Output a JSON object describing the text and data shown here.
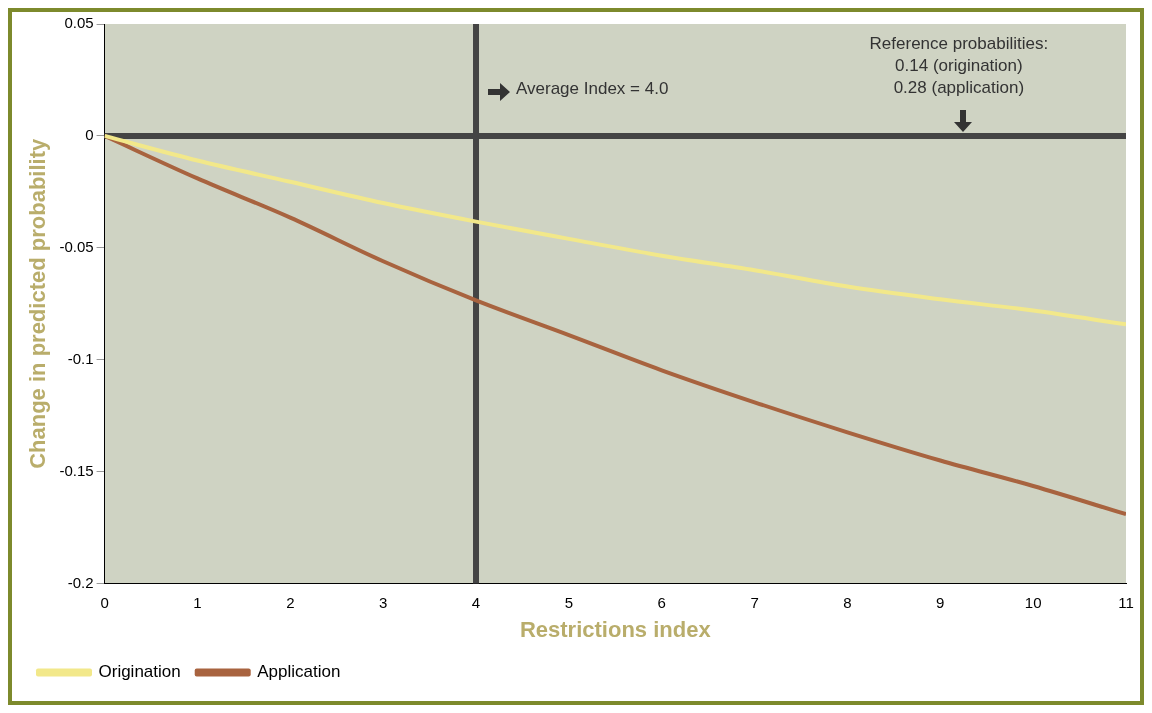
{
  "chart_data": {
    "type": "line",
    "xlabel": "Restrictions index",
    "ylabel": "Change in predicted probability",
    "x": [
      0,
      1,
      2,
      3,
      4,
      5,
      6,
      7,
      8,
      9,
      10,
      11
    ],
    "series": [
      {
        "name": "Origination",
        "color": "#f2e88a",
        "values": [
          0,
          -0.011,
          -0.0205,
          -0.03,
          -0.0383,
          -0.046,
          -0.0535,
          -0.06,
          -0.0673,
          -0.073,
          -0.078,
          -0.0842
        ]
      },
      {
        "name": "Application",
        "color": "#a8633f",
        "values": [
          0,
          -0.019,
          -0.0365,
          -0.056,
          -0.0735,
          -0.089,
          -0.1047,
          -0.119,
          -0.1324,
          -0.145,
          -0.1564,
          -0.169
        ]
      }
    ],
    "xlim": [
      0,
      11
    ],
    "xticks": [
      0,
      1,
      2,
      3,
      4,
      5,
      6,
      7,
      8,
      9,
      10,
      11
    ],
    "ylim": [
      -0.2,
      0.05
    ],
    "yticks": [
      -0.2,
      -0.15,
      -0.1,
      -0.05,
      0,
      0.05
    ],
    "ref_lines": [
      {
        "axis": "x",
        "value": 4,
        "label": "Average Index = 4.0",
        "color": "#444444"
      },
      {
        "axis": "y",
        "value": 0,
        "color": "#444444"
      }
    ],
    "annotations": [
      {
        "text": "Reference probabilities:\n0.14 (origination)\n0.28 (application)",
        "x": 9.2,
        "y": 0
      }
    ],
    "grid": false,
    "legend": "bottom left",
    "marker": "none",
    "line_style": "solid"
  }
}
